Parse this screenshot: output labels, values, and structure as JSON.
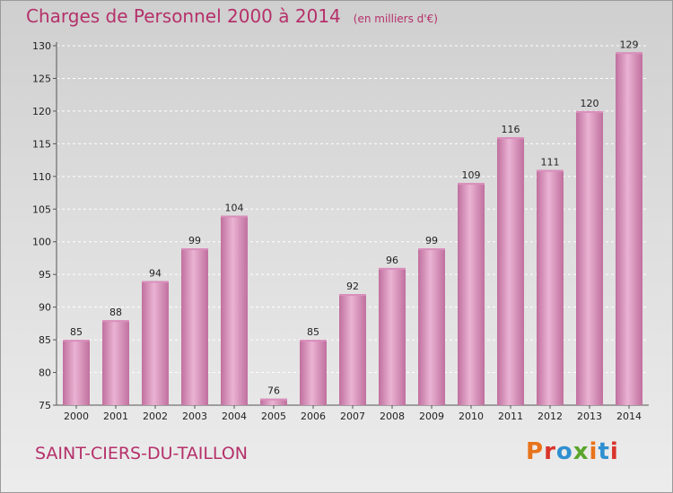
{
  "header": {
    "title": "Charges de Personnel 2000 à 2014",
    "subtitle": "(en milliers d'€)"
  },
  "footer": {
    "place": "SAINT-CIERS-DU-TAILLON",
    "logo": "Proxiti",
    "logo_colors": [
      "#e8731a",
      "#d9342b",
      "#2f8fd0",
      "#59a52c",
      "#e8731a",
      "#2f8fd0",
      "#d9342b"
    ]
  },
  "colors": {
    "bar_light": "#eab3d3",
    "bar_dark": "#c0709e",
    "bar_top": "#d98fbb",
    "text_accent": "#b5306a"
  },
  "chart_data": {
    "type": "bar",
    "title": "Charges de Personnel 2000 à 2014",
    "subtitle": "(en milliers d'€)",
    "categories": [
      "2000",
      "2001",
      "2002",
      "2003",
      "2004",
      "2005",
      "2006",
      "2007",
      "2008",
      "2009",
      "2010",
      "2011",
      "2012",
      "2013",
      "2014"
    ],
    "values": [
      85,
      88,
      94,
      99,
      104,
      76,
      85,
      92,
      96,
      99,
      109,
      116,
      111,
      120,
      129
    ],
    "ylim": [
      75,
      130
    ],
    "yticks": [
      75,
      80,
      85,
      90,
      95,
      100,
      105,
      110,
      115,
      120,
      125,
      130
    ],
    "grid": true,
    "legend": "none"
  }
}
